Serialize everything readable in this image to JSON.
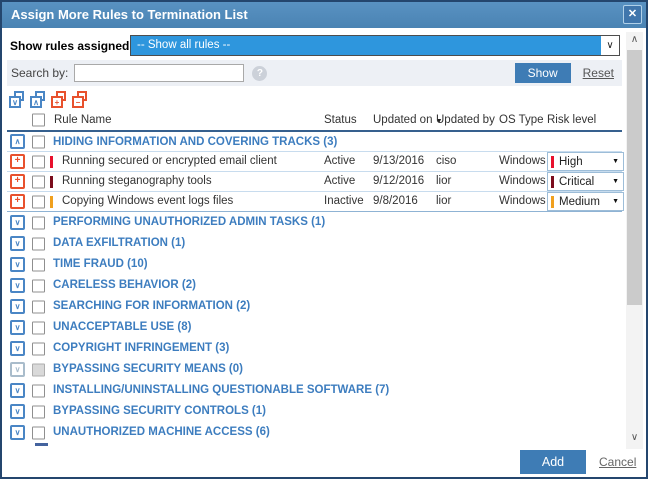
{
  "colors": {
    "risk_high": "#e8112d",
    "risk_critical": "#7b0c1c",
    "risk_medium": "#f0a01e",
    "accent_blue": "#4e88ba",
    "link_blue": "#3d7dbf",
    "icon_orange": "#e8512d",
    "icon_blue": "#4a86c5"
  },
  "icons": {
    "close": "✕",
    "dropdown_chevron": "∨",
    "help": "?",
    "sort_desc": "▼",
    "expand": "∨",
    "collapse": "∧",
    "add": "+",
    "remove": "−",
    "risk_caret": "▼",
    "scroll_up": "∧",
    "scroll_down": "∨"
  },
  "dialog": {
    "title": "Assign More Rules to Termination List"
  },
  "filter": {
    "label": "Show rules assigned to",
    "selected_option": "-- Show all rules --"
  },
  "search": {
    "label": "Search by:",
    "value": "",
    "show_button": "Show",
    "reset_link": "Reset"
  },
  "table": {
    "headers": {
      "rule_name": "Rule Name",
      "status": "Status",
      "updated_on": "Updated on",
      "updated_by": "Updated by",
      "os_type": "OS Type",
      "risk_level": "Risk level"
    },
    "expanded_group": {
      "label": "HIDING INFORMATION AND COVERING TRACKS (3)"
    },
    "rules": [
      {
        "name": "Running secured or encrypted email client",
        "status": "Active",
        "updated_on": "9/13/2016",
        "updated_by": "ciso",
        "os_type": "Windows",
        "risk": "High"
      },
      {
        "name": "Running steganography tools",
        "status": "Active",
        "updated_on": "9/12/2016",
        "updated_by": "lior",
        "os_type": "Windows",
        "risk": "Critical"
      },
      {
        "name": "Copying Windows event logs files",
        "status": "Inactive",
        "updated_on": "9/8/2016",
        "updated_by": "lior",
        "os_type": "Windows",
        "risk": "Medium"
      }
    ],
    "collapsed_groups": [
      {
        "label": "PERFORMING UNAUTHORIZED ADMIN TASKS (1)",
        "disabled": false
      },
      {
        "label": "DATA EXFILTRATION (1)",
        "disabled": false
      },
      {
        "label": "TIME FRAUD (10)",
        "disabled": false
      },
      {
        "label": "CARELESS BEHAVIOR (2)",
        "disabled": false
      },
      {
        "label": "SEARCHING FOR INFORMATION (2)",
        "disabled": false
      },
      {
        "label": "UNACCEPTABLE USE (8)",
        "disabled": false
      },
      {
        "label": "COPYRIGHT INFRINGEMENT (3)",
        "disabled": false
      },
      {
        "label": "BYPASSING SECURITY MEANS (0)",
        "disabled": true
      },
      {
        "label": "INSTALLING/UNINSTALLING QUESTIONABLE SOFTWARE (7)",
        "disabled": false
      },
      {
        "label": "BYPASSING SECURITY CONTROLS (1)",
        "disabled": false
      },
      {
        "label": "UNAUTHORIZED MACHINE ACCESS (6)",
        "disabled": false
      }
    ]
  },
  "footer": {
    "add_button": "Add",
    "cancel_link": "Cancel"
  }
}
